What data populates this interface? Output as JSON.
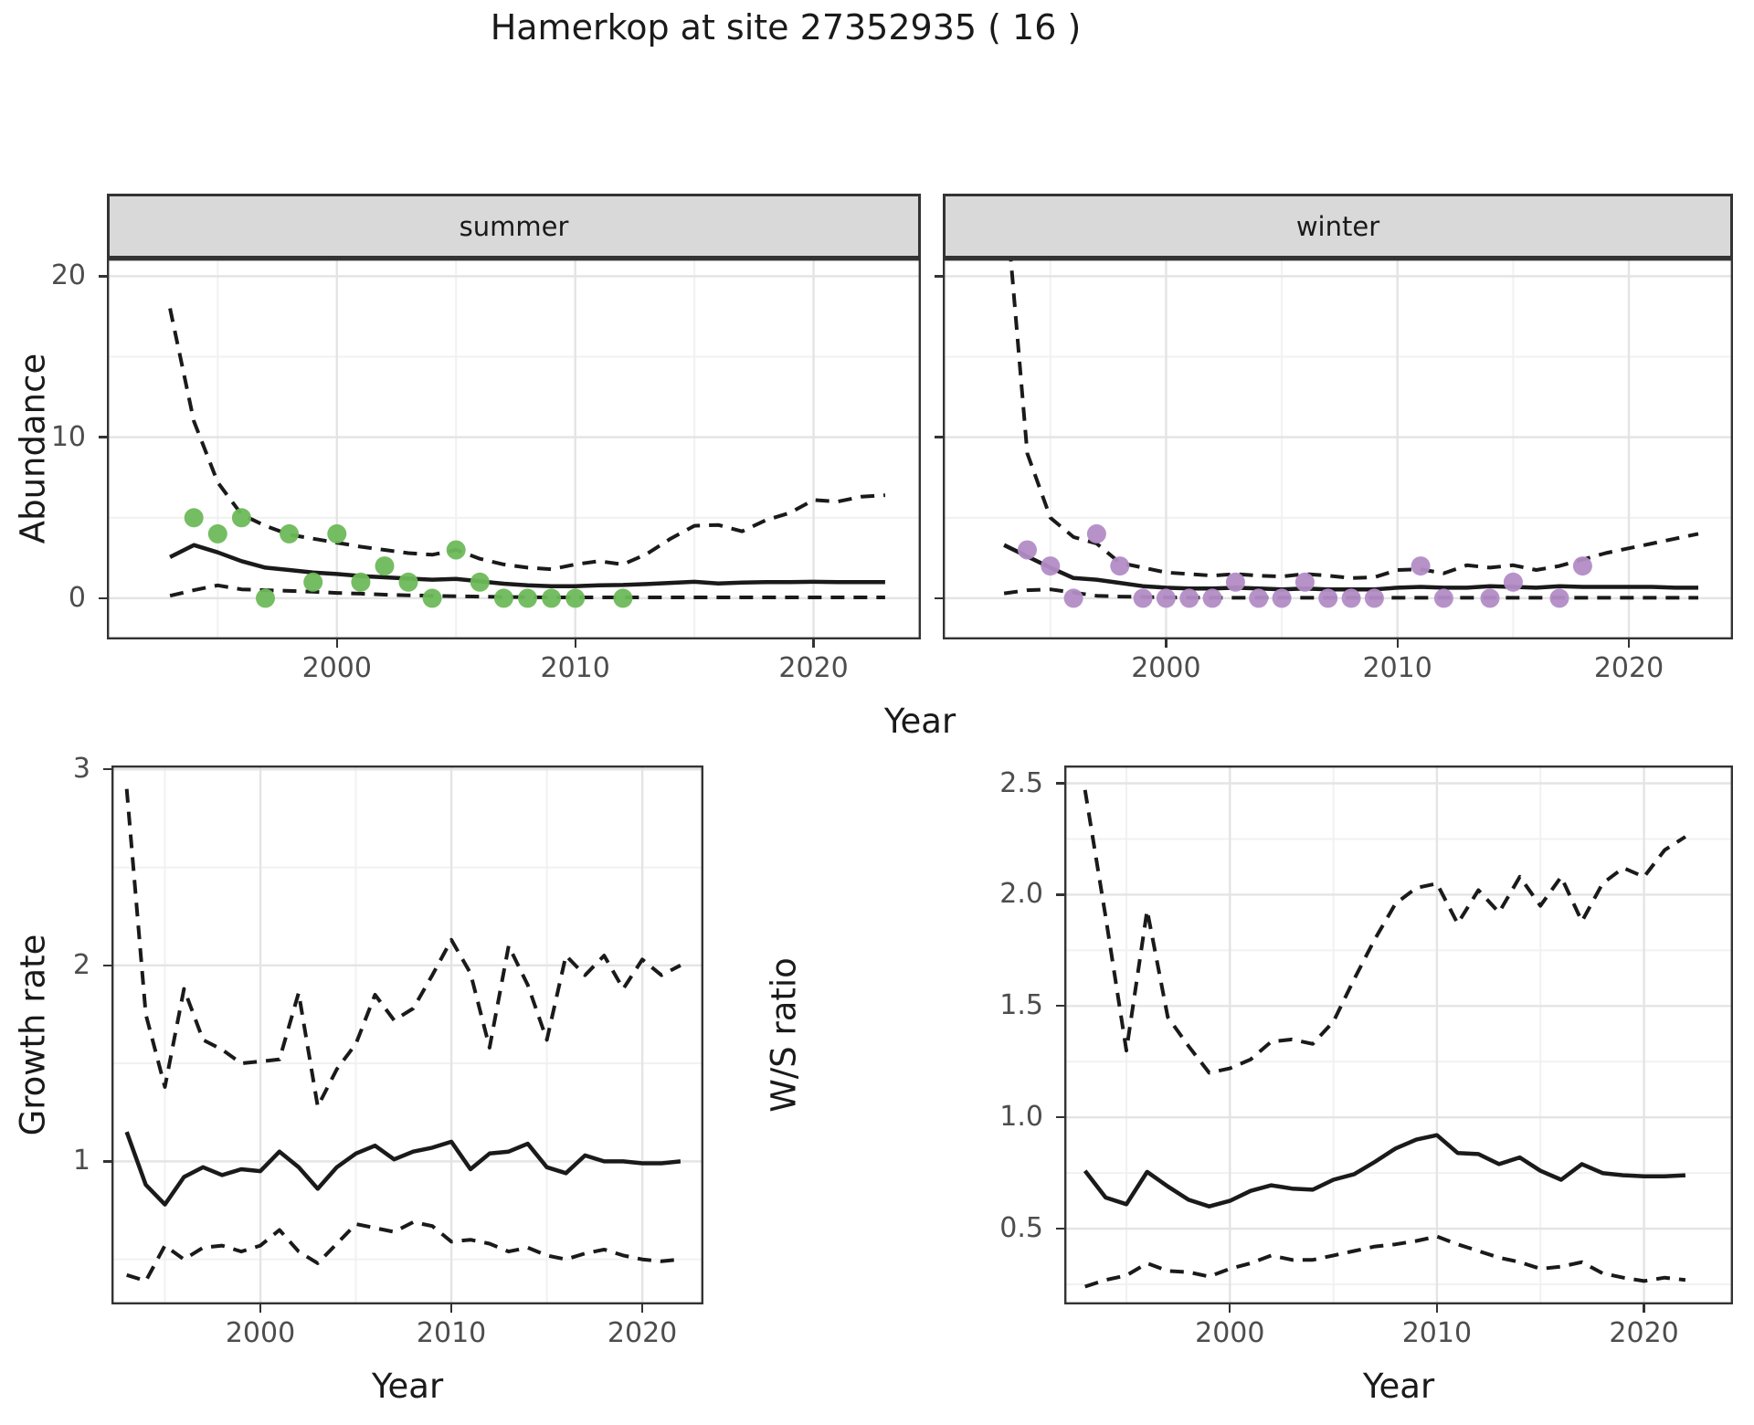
{
  "title": "Hamerkop at site 27352935 ( 16 )",
  "colors": {
    "summer_point": "#6EB95A",
    "winter_point": "#B28CC6",
    "line": "#1A1A1A",
    "strip_bg": "#D9D9D9",
    "panel_border": "#333333",
    "grid_major": "#E4E4E4",
    "grid_minor": "#F1F1F1",
    "tick_text": "#4D4D4D",
    "title_text": "#1A1A1A"
  },
  "axis_titles": {
    "y_top": "Abundance",
    "x_top": "Year",
    "y_bottom_left": "Growth rate",
    "x_bottom_left": "Year",
    "y_bottom_right": "W/S ratio",
    "x_bottom_right": "Year"
  },
  "chart_data": [
    {
      "id": "summer",
      "type": "line",
      "facet_label": "summer",
      "xlabel": "Year",
      "ylabel": "Abundance",
      "xlim": [
        1990.35,
        2024.5
      ],
      "ylim": [
        -2.56,
        21.1
      ],
      "xticks": [
        2000,
        2010,
        2020
      ],
      "xtick_labels": [
        "2000",
        "2010",
        "2020"
      ],
      "yticks": [
        0,
        10,
        20
      ],
      "ytick_labels": [
        "0",
        "10",
        "20"
      ],
      "show_y_labels": true,
      "minor_x": [
        1995,
        2005,
        2015
      ],
      "minor_y": [
        5,
        15
      ],
      "years": [
        1993,
        1994,
        1995,
        1996,
        1997,
        1998,
        1999,
        2000,
        2001,
        2002,
        2003,
        2004,
        2005,
        2006,
        2007,
        2008,
        2009,
        2010,
        2011,
        2012,
        2013,
        2014,
        2015,
        2016,
        2017,
        2018,
        2019,
        2020,
        2021,
        2022,
        2023
      ],
      "mean": [
        2.55,
        3.3,
        2.85,
        2.3,
        1.9,
        1.75,
        1.6,
        1.5,
        1.38,
        1.3,
        1.22,
        1.15,
        1.2,
        1.05,
        0.9,
        0.8,
        0.75,
        0.75,
        0.8,
        0.82,
        0.88,
        0.95,
        1.02,
        0.92,
        0.97,
        1.0,
        1.0,
        1.02,
        1.0,
        1.0,
        1.0
      ],
      "upper_ci": [
        18,
        11,
        7.2,
        5.2,
        4.5,
        3.95,
        3.7,
        3.45,
        3.2,
        3.0,
        2.8,
        2.7,
        3.0,
        2.45,
        2.1,
        1.9,
        1.8,
        2.1,
        2.3,
        2.1,
        2.75,
        3.7,
        4.5,
        4.55,
        4.15,
        4.85,
        5.3,
        6.1,
        6.0,
        6.3,
        6.4
      ],
      "lower_ci": [
        0.15,
        0.5,
        0.8,
        0.55,
        0.5,
        0.45,
        0.4,
        0.33,
        0.28,
        0.22,
        0.18,
        0.15,
        0.12,
        0.1,
        0.08,
        0.06,
        0.05,
        0.05,
        0.05,
        0.05,
        0.05,
        0.05,
        0.05,
        0.05,
        0.05,
        0.05,
        0.05,
        0.05,
        0.05,
        0.05,
        0.05
      ],
      "observations": [
        [
          1994,
          5
        ],
        [
          1995,
          4
        ],
        [
          1996,
          5
        ],
        [
          1997,
          0
        ],
        [
          1998,
          4
        ],
        [
          1999,
          1
        ],
        [
          2000,
          4
        ],
        [
          2001,
          1
        ],
        [
          2002,
          2
        ],
        [
          2003,
          1
        ],
        [
          2004,
          0
        ],
        [
          2005,
          3
        ],
        [
          2006,
          1
        ],
        [
          2007,
          0
        ],
        [
          2008,
          0
        ],
        [
          2009,
          0
        ],
        [
          2010,
          0
        ],
        [
          2012,
          0
        ]
      ],
      "point_color": "#6EB95A"
    },
    {
      "id": "winter",
      "type": "line",
      "facet_label": "winter",
      "xlabel": "Year",
      "ylabel": "Abundance",
      "xlim": [
        1990.35,
        2024.5
      ],
      "ylim": [
        -2.56,
        21.1
      ],
      "xticks": [
        2000,
        2010,
        2020
      ],
      "xtick_labels": [
        "2000",
        "2010",
        "2020"
      ],
      "yticks": [
        0,
        10,
        20
      ],
      "ytick_labels": [
        "0",
        "10",
        "20"
      ],
      "show_y_labels": false,
      "minor_x": [
        1995,
        2005,
        2015
      ],
      "minor_y": [
        5,
        15
      ],
      "years": [
        1993,
        1994,
        1995,
        1996,
        1997,
        1998,
        1999,
        2000,
        2001,
        2002,
        2003,
        2004,
        2005,
        2006,
        2007,
        2008,
        2009,
        2010,
        2011,
        2012,
        2013,
        2014,
        2015,
        2016,
        2017,
        2018,
        2019,
        2020,
        2021,
        2022,
        2023
      ],
      "mean": [
        3.3,
        2.6,
        1.9,
        1.25,
        1.15,
        0.95,
        0.75,
        0.65,
        0.6,
        0.6,
        0.65,
        0.6,
        0.55,
        0.6,
        0.55,
        0.55,
        0.55,
        0.65,
        0.7,
        0.65,
        0.65,
        0.75,
        0.7,
        0.65,
        0.75,
        0.7,
        0.7,
        0.7,
        0.7,
        0.65,
        0.65
      ],
      "upper_ci": [
        26,
        9,
        5.0,
        3.8,
        3.4,
        2.2,
        1.9,
        1.6,
        1.5,
        1.4,
        1.5,
        1.4,
        1.35,
        1.5,
        1.4,
        1.25,
        1.3,
        1.75,
        1.8,
        1.55,
        2.05,
        1.9,
        2.05,
        1.75,
        2.0,
        2.4,
        2.8,
        3.1,
        3.4,
        3.7,
        4.0
      ],
      "lower_ci": [
        0.3,
        0.5,
        0.55,
        0.35,
        0.15,
        0.1,
        0.08,
        0.05,
        0.04,
        0.03,
        0.03,
        0.03,
        0.03,
        0.03,
        0.03,
        0.03,
        0.03,
        0.03,
        0.03,
        0.03,
        0.03,
        0.03,
        0.03,
        0.03,
        0.03,
        0.03,
        0.03,
        0.03,
        0.03,
        0.03,
        0.03
      ],
      "observations": [
        [
          1994,
          3
        ],
        [
          1995,
          2
        ],
        [
          1996,
          0
        ],
        [
          1997,
          4
        ],
        [
          1998,
          2
        ],
        [
          1999,
          0
        ],
        [
          2000,
          0
        ],
        [
          2001,
          0
        ],
        [
          2002,
          0
        ],
        [
          2003,
          1
        ],
        [
          2004,
          0
        ],
        [
          2005,
          0
        ],
        [
          2006,
          1
        ],
        [
          2007,
          0
        ],
        [
          2008,
          0
        ],
        [
          2009,
          0
        ],
        [
          2011,
          2
        ],
        [
          2012,
          0
        ],
        [
          2014,
          0
        ],
        [
          2015,
          1
        ],
        [
          2017,
          0
        ],
        [
          2018,
          2
        ]
      ],
      "point_color": "#B28CC6"
    },
    {
      "id": "growth",
      "type": "line",
      "facet_label": null,
      "xlabel": "Year",
      "ylabel": "Growth rate",
      "xlim": [
        1992.2,
        2023.2
      ],
      "ylim": [
        0.27,
        3.02
      ],
      "xticks": [
        2000,
        2010,
        2020
      ],
      "xtick_labels": [
        "2000",
        "2010",
        "2020"
      ],
      "yticks": [
        1,
        2,
        3
      ],
      "ytick_labels": [
        "1",
        "2",
        "3"
      ],
      "show_y_labels": true,
      "minor_x": [
        1995,
        2005,
        2015
      ],
      "minor_y": [
        0.5,
        1.5,
        2.5
      ],
      "years": [
        1993,
        1994,
        1995,
        1996,
        1997,
        1998,
        1999,
        2000,
        2001,
        2002,
        2003,
        2004,
        2005,
        2006,
        2007,
        2008,
        2009,
        2010,
        2011,
        2012,
        2013,
        2014,
        2015,
        2016,
        2017,
        2018,
        2019,
        2020,
        2021,
        2022
      ],
      "mean": [
        1.15,
        0.88,
        0.78,
        0.92,
        0.97,
        0.93,
        0.96,
        0.95,
        1.05,
        0.97,
        0.86,
        0.97,
        1.04,
        1.08,
        1.01,
        1.05,
        1.07,
        1.1,
        0.96,
        1.04,
        1.05,
        1.09,
        0.97,
        0.94,
        1.03,
        1.0,
        1.0,
        0.99,
        0.99,
        1.0
      ],
      "upper_ci": [
        2.9,
        1.75,
        1.38,
        1.88,
        1.62,
        1.57,
        1.5,
        1.51,
        1.52,
        1.86,
        1.28,
        1.47,
        1.6,
        1.85,
        1.72,
        1.78,
        1.95,
        2.13,
        1.96,
        1.58,
        2.1,
        1.9,
        1.62,
        2.05,
        1.95,
        2.05,
        1.88,
        2.03,
        1.95,
        2.0
      ],
      "lower_ci": [
        0.42,
        0.39,
        0.57,
        0.5,
        0.56,
        0.57,
        0.54,
        0.57,
        0.65,
        0.54,
        0.48,
        0.58,
        0.68,
        0.66,
        0.64,
        0.69,
        0.67,
        0.59,
        0.6,
        0.58,
        0.54,
        0.56,
        0.52,
        0.5,
        0.53,
        0.55,
        0.52,
        0.5,
        0.49,
        0.5
      ],
      "observations": [],
      "point_color": null
    },
    {
      "id": "ws",
      "type": "line",
      "facet_label": null,
      "xlabel": "Year",
      "ylabel": "W/S ratio",
      "xlim": [
        1992.0,
        2024.3
      ],
      "ylim": [
        0.16,
        2.58
      ],
      "xticks": [
        2000,
        2010,
        2020
      ],
      "xtick_labels": [
        "2000",
        "2010",
        "2020"
      ],
      "yticks": [
        0.5,
        1.0,
        1.5,
        2.0,
        2.5
      ],
      "ytick_labels": [
        "0.5",
        "1.0",
        "1.5",
        "2.0",
        "2.5"
      ],
      "show_y_labels": true,
      "minor_x": [
        1995,
        2005,
        2015
      ],
      "minor_y": [
        0.25,
        0.75,
        1.25,
        1.75,
        2.25
      ],
      "years": [
        1993,
        1994,
        1995,
        1996,
        1997,
        1998,
        1999,
        2000,
        2001,
        2002,
        2003,
        2004,
        2005,
        2006,
        2007,
        2008,
        2009,
        2010,
        2011,
        2012,
        2013,
        2014,
        2015,
        2016,
        2017,
        2018,
        2019,
        2020,
        2021,
        2022
      ],
      "mean": [
        0.76,
        0.64,
        0.61,
        0.755,
        0.69,
        0.63,
        0.6,
        0.625,
        0.67,
        0.695,
        0.68,
        0.675,
        0.72,
        0.745,
        0.8,
        0.86,
        0.9,
        0.92,
        0.84,
        0.835,
        0.79,
        0.82,
        0.76,
        0.72,
        0.79,
        0.75,
        0.74,
        0.735,
        0.735,
        0.74
      ],
      "upper_ci": [
        2.47,
        1.9,
        1.3,
        1.93,
        1.45,
        1.32,
        1.2,
        1.22,
        1.26,
        1.34,
        1.35,
        1.33,
        1.43,
        1.62,
        1.8,
        1.96,
        2.03,
        2.05,
        1.87,
        2.02,
        1.92,
        2.08,
        1.95,
        2.08,
        1.88,
        2.05,
        2.12,
        2.08,
        2.2,
        2.26
      ],
      "lower_ci": [
        0.24,
        0.27,
        0.29,
        0.345,
        0.31,
        0.305,
        0.285,
        0.32,
        0.345,
        0.38,
        0.36,
        0.36,
        0.38,
        0.4,
        0.42,
        0.43,
        0.445,
        0.465,
        0.43,
        0.4,
        0.37,
        0.35,
        0.32,
        0.33,
        0.35,
        0.3,
        0.28,
        0.265,
        0.28,
        0.27
      ],
      "observations": [],
      "point_color": null
    }
  ]
}
